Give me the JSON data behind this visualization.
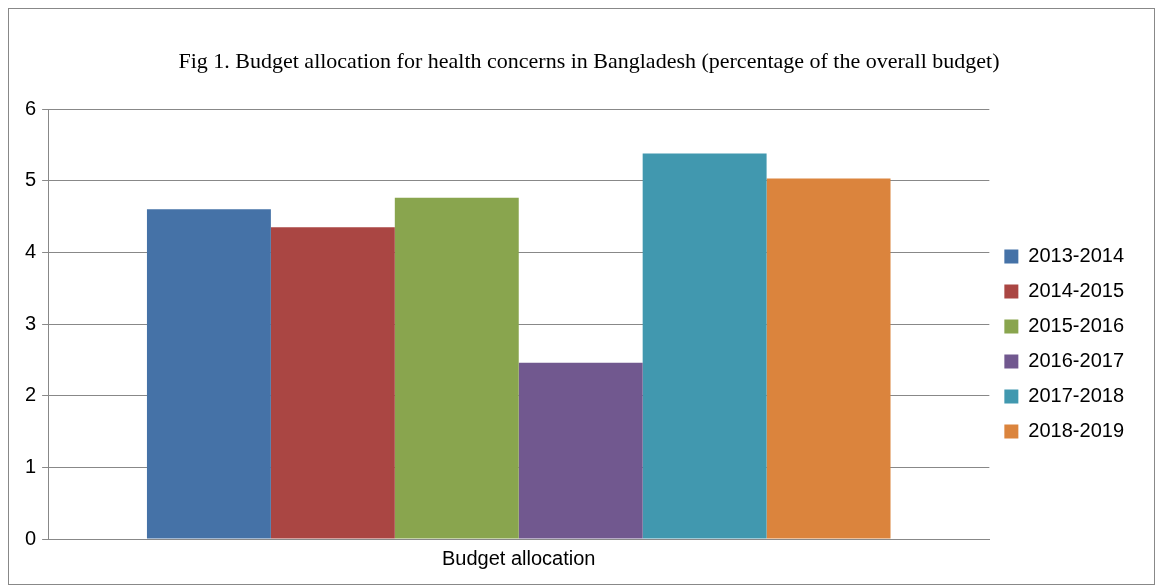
{
  "chart_data": {
    "type": "bar",
    "title": "Fig 1. Budget allocation for health concerns in Bangladesh (percentage of the overall budget)",
    "categories": [
      "Budget allocation"
    ],
    "series": [
      {
        "name": "2013-2014",
        "color": "#4572a7",
        "values": [
          4.6
        ]
      },
      {
        "name": "2014-2015",
        "color": "#aa4643",
        "values": [
          4.35
        ]
      },
      {
        "name": "2015-2016",
        "color": "#89a54e",
        "values": [
          4.76
        ]
      },
      {
        "name": "2016-2017",
        "color": "#71588f",
        "values": [
          2.46
        ]
      },
      {
        "name": "2017-2018",
        "color": "#4198af",
        "values": [
          5.38
        ]
      },
      {
        "name": "2018-2019",
        "color": "#db843d",
        "values": [
          5.03
        ]
      }
    ],
    "ylim": [
      0,
      6
    ],
    "yticks": [
      0,
      1,
      2,
      3,
      4,
      5,
      6
    ],
    "grid": "y",
    "legend": "right"
  }
}
